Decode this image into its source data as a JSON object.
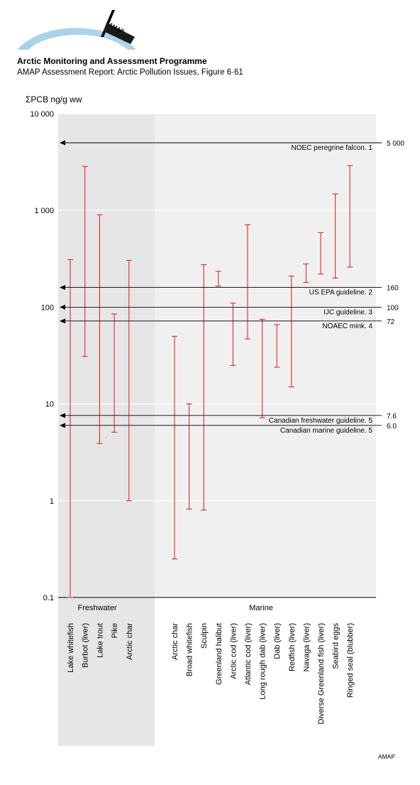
{
  "header": {
    "logo_text": "AMAP",
    "title": "Arctic Monitoring and Assessment Programme",
    "subtitle": "AMAP Assessment Report: Arctic Pollution Issues, Figure 6·61"
  },
  "footer": {
    "credit": "AMAP"
  },
  "colors": {
    "range_line": "#e0282a",
    "freshwater_panel": "#e6e6e6",
    "marine_panel": "#f0f0f0",
    "reference_line": "#000000"
  },
  "chart_data": {
    "type": "range",
    "ylabel": "ΣPCB ng/g ww",
    "yscale": "log",
    "ylim": [
      0.1,
      10000
    ],
    "yticks": [
      {
        "value": 10000,
        "label": "10 000"
      },
      {
        "value": 1000,
        "label": "1 000"
      },
      {
        "value": 100,
        "label": "100"
      },
      {
        "value": 10,
        "label": "10"
      },
      {
        "value": 1,
        "label": "1"
      },
      {
        "value": 0.1,
        "label": "0.1"
      }
    ],
    "groups": [
      {
        "label": "Freshwater",
        "categories": [
          "Lake whitefish",
          "Burbot (liver)",
          "Lake trout",
          "Pike",
          "Arctic char"
        ]
      },
      {
        "label": "Marine",
        "categories": [
          "Arctic char",
          "Broad whitefish",
          "Sculpin",
          "Greenland halibut",
          "Arctic cod (liver)",
          "Atlantic cod (liver)",
          "Long rough dab (liver)",
          "Dab (liver)",
          "Redfish (liver)",
          "Navaga (liver)",
          "Diverse Greenland fish (liver)",
          "Seabird eggs",
          "Ringed seal (blubber)"
        ]
      }
    ],
    "ranges": [
      {
        "category": "Lake whitefish",
        "group": "Freshwater",
        "min": 0.1,
        "max": 310
      },
      {
        "category": "Burbot (liver)",
        "group": "Freshwater",
        "min": 31,
        "max": 2850
      },
      {
        "category": "Lake trout",
        "group": "Freshwater",
        "min": 3.9,
        "max": 900
      },
      {
        "category": "Pike",
        "group": "Freshwater",
        "min": 5.1,
        "max": 85
      },
      {
        "category": "Arctic char",
        "group": "Freshwater",
        "min": 1.0,
        "max": 305
      },
      {
        "category": "Arctic char",
        "group": "Marine",
        "min": 0.25,
        "max": 50
      },
      {
        "category": "Broad whitefish",
        "group": "Marine",
        "min": 0.82,
        "max": 10
      },
      {
        "category": "Sculpin",
        "group": "Marine",
        "min": 0.8,
        "max": 275
      },
      {
        "category": "Greenland halibut",
        "group": "Marine",
        "min": 165,
        "max": 235
      },
      {
        "category": "Arctic cod (liver)",
        "group": "Marine",
        "min": 25,
        "max": 110
      },
      {
        "category": "Atlantic cod (liver)",
        "group": "Marine",
        "min": 47,
        "max": 710
      },
      {
        "category": "Long rough dab (liver)",
        "group": "Marine",
        "min": 7.2,
        "max": 75
      },
      {
        "category": "Dab (liver)",
        "group": "Marine",
        "min": 24,
        "max": 66
      },
      {
        "category": "Redfish (liver)",
        "group": "Marine",
        "min": 15,
        "max": 210
      },
      {
        "category": "Navaga (liver)",
        "group": "Marine",
        "min": 180,
        "max": 280
      },
      {
        "category": "Diverse Greenland fish (liver)",
        "group": "Marine",
        "min": 220,
        "max": 590
      },
      {
        "category": "Seabird eggs",
        "group": "Marine",
        "min": 200,
        "max": 1480
      },
      {
        "category": "Ringed seal (blubber)",
        "group": "Marine",
        "min": 260,
        "max": 2900
      }
    ],
    "reference_lines": [
      {
        "label": "NOEC peregrine falcon. 1",
        "value": 5000,
        "value_label": "5 000"
      },
      {
        "label": "US EPA guideline. 2",
        "value": 160,
        "value_label": "160"
      },
      {
        "label": "IJC guideline. 3",
        "value": 100,
        "value_label": "100"
      },
      {
        "label": "NOAEC mink. 4",
        "value": 72,
        "value_label": "72"
      },
      {
        "label": "Canadian freshwater guideline. 5",
        "value": 7.6,
        "value_label": "7.6"
      },
      {
        "label": "Canadian marine guideline. 5",
        "value": 6.0,
        "value_label": "6.0"
      }
    ],
    "grid": true
  }
}
